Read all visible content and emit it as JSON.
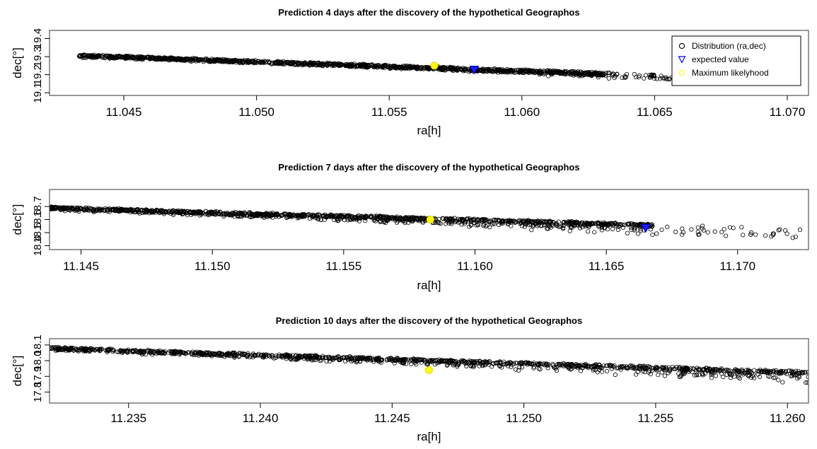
{
  "chart_data": [
    {
      "type": "scatter",
      "title": "Prediction 4 days after the discovery of the hypothetical Geographos",
      "xlabel": "ra[h]",
      "ylabel": "dec[°]",
      "xlim": [
        11.0422,
        11.0708
      ],
      "ylim": [
        19.085,
        19.445
      ],
      "xticks": [
        "11.045",
        "11.050",
        "11.055",
        "11.060",
        "11.065",
        "11.070"
      ],
      "yticks": [
        "19.1",
        "19.2",
        "19.3",
        "19.4"
      ],
      "grid": false,
      "legend_position": "top-right",
      "legend": [
        {
          "label": "Distribution (ra,dec)",
          "marker": "circle-open",
          "color": "#000000"
        },
        {
          "label": "expected value",
          "marker": "triangle-down-open",
          "color": "#0000ff"
        },
        {
          "label": "Maximum likelyhood",
          "marker": "circle-open",
          "color": "#ffff00"
        }
      ],
      "distribution_band": {
        "x_start": 11.0433,
        "y_start": 19.31,
        "x_end": 11.0635,
        "y_end": 19.208,
        "x_tail_end": 11.0658,
        "scatter_below": 0.05
      },
      "expected_value": {
        "x": 11.0582,
        "y": 19.228
      },
      "max_likelihood": {
        "x": 11.0567,
        "y": 19.25
      }
    },
    {
      "type": "scatter",
      "title": "Prediction 7 days after the discovery of the hypothetical Geographos",
      "xlabel": "ra[h]",
      "ylabel": "dec[°]",
      "xlim": [
        11.1438,
        11.1727
      ],
      "ylim": [
        18.37,
        18.83
      ],
      "xticks": [
        "11.145",
        "11.150",
        "11.155",
        "11.160",
        "11.165",
        "11.170"
      ],
      "yticks": [
        "18.4",
        "18.5",
        "18.6",
        "18.7"
      ],
      "grid": false,
      "distribution_band": {
        "x_start": 11.1438,
        "y_start": 18.695,
        "x_end": 11.1668,
        "y_end": 18.565,
        "x_tail_end": 11.1727,
        "scatter_below": 0.12
      },
      "expected_value": {
        "x": 11.1665,
        "y": 18.535
      },
      "max_likelihood": {
        "x": 11.1583,
        "y": 18.6
      }
    },
    {
      "type": "scatter",
      "title": "Prediction 10 days after the discovery of the hypothetical Geographos",
      "xlabel": "ra[h]",
      "ylabel": "dec[°]",
      "xlim": [
        11.232,
        11.2608
      ],
      "ylim": [
        17.73,
        18.14
      ],
      "xticks": [
        "11.235",
        "11.240",
        "11.245",
        "11.250",
        "11.255",
        "11.260"
      ],
      "yticks": [
        "17.8",
        "17.9",
        "18.0",
        "18.1"
      ],
      "grid": false,
      "distribution_band": {
        "x_start": 11.232,
        "y_start": 18.085,
        "x_end": 11.2608,
        "y_end": 17.93,
        "x_tail_end": 11.2608,
        "scatter_below": 0.12
      },
      "max_likelihood": {
        "x": 11.2464,
        "y": 17.94
      }
    }
  ]
}
